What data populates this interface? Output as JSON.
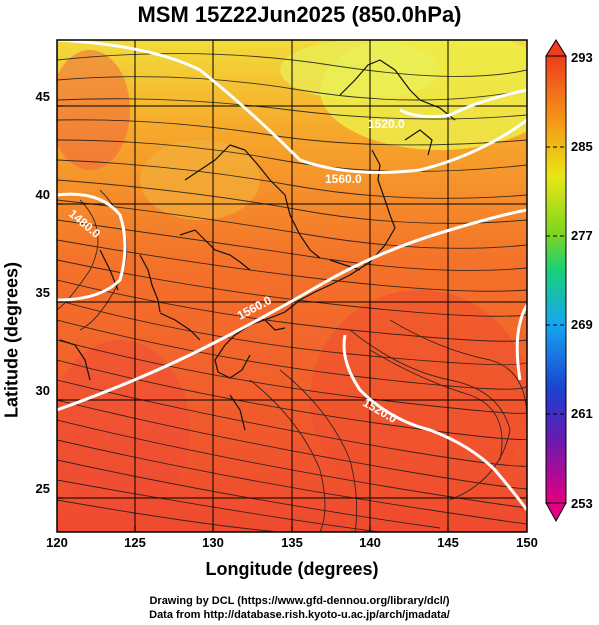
{
  "title": "MSM 15Z22Jun2025 (850.0hPa)",
  "map": {
    "xlabel": "Longitude (degrees)",
    "ylabel": "Latitude  (degrees)",
    "lon_range": [
      120,
      150
    ],
    "lat_range": [
      22.4,
      47.6
    ],
    "lon_ticks": [
      "120",
      "125",
      "130",
      "135",
      "140",
      "145",
      "150"
    ],
    "lat_ticks": [
      "25",
      "30",
      "35",
      "40",
      "45"
    ],
    "grid": true,
    "contour_labels": [
      "1480.0",
      "1560.0",
      "1520.0",
      "1560.0",
      "1520.0"
    ]
  },
  "colorbar": {
    "ticks": [
      "293",
      "285",
      "277",
      "269",
      "261",
      "253"
    ],
    "colors": [
      "#e4007f",
      "#1c3fd0",
      "#15a6f0",
      "#19d07a",
      "#79d520",
      "#e9e615",
      "#f59a17",
      "#ee3c1d",
      "#f44242"
    ]
  },
  "credits": {
    "line1": "Drawing by DCL (https://www.gfd-dennou.org/library/dcl/)",
    "line2": "Data from http://database.rish.kyoto-u.ac.jp/arch/jmadata/"
  }
}
